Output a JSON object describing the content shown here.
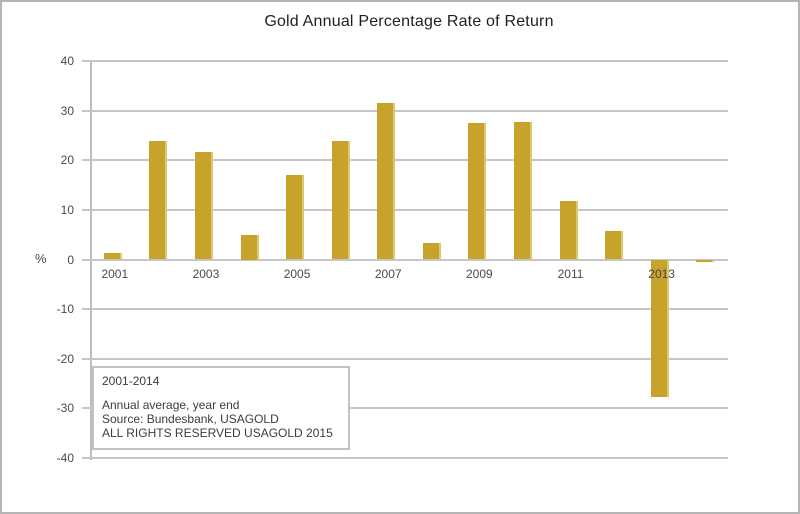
{
  "chart_data": {
    "type": "bar",
    "title": "Gold Annual Percentage Rate of Return",
    "ylabel": "%",
    "categories": [
      "2001",
      "2002",
      "2003",
      "2004",
      "2005",
      "2006",
      "2007",
      "2008",
      "2009",
      "2010",
      "2011",
      "2012",
      "2013",
      "2014"
    ],
    "values": [
      1.3,
      23.9,
      21.7,
      5.0,
      17.0,
      23.9,
      31.5,
      3.4,
      27.6,
      27.7,
      11.7,
      5.7,
      -27.7,
      -0.4
    ],
    "ylim": [
      -40,
      40
    ],
    "yticks": [
      40,
      30,
      20,
      10,
      0,
      -10,
      -20,
      -30,
      -40
    ],
    "xtick_labels": [
      "2001",
      "2003",
      "2005",
      "2007",
      "2009",
      "2011",
      "2013"
    ],
    "xtick_every": 2,
    "grid": "horizontal",
    "legend": "none",
    "bar_color": "#C8A32B",
    "bar_edge_color": "#DCC873",
    "grid_color": "#C6C6C6",
    "axis_color": "#BCBCBC",
    "label_color": "#4A4A4A"
  },
  "annotation_box": {
    "lines": [
      "2001-2014",
      "Annual average, year end",
      "Source: Bundesbank, USAGOLD",
      "ALL RIGHTS RESERVED USAGOLD 2015"
    ]
  }
}
